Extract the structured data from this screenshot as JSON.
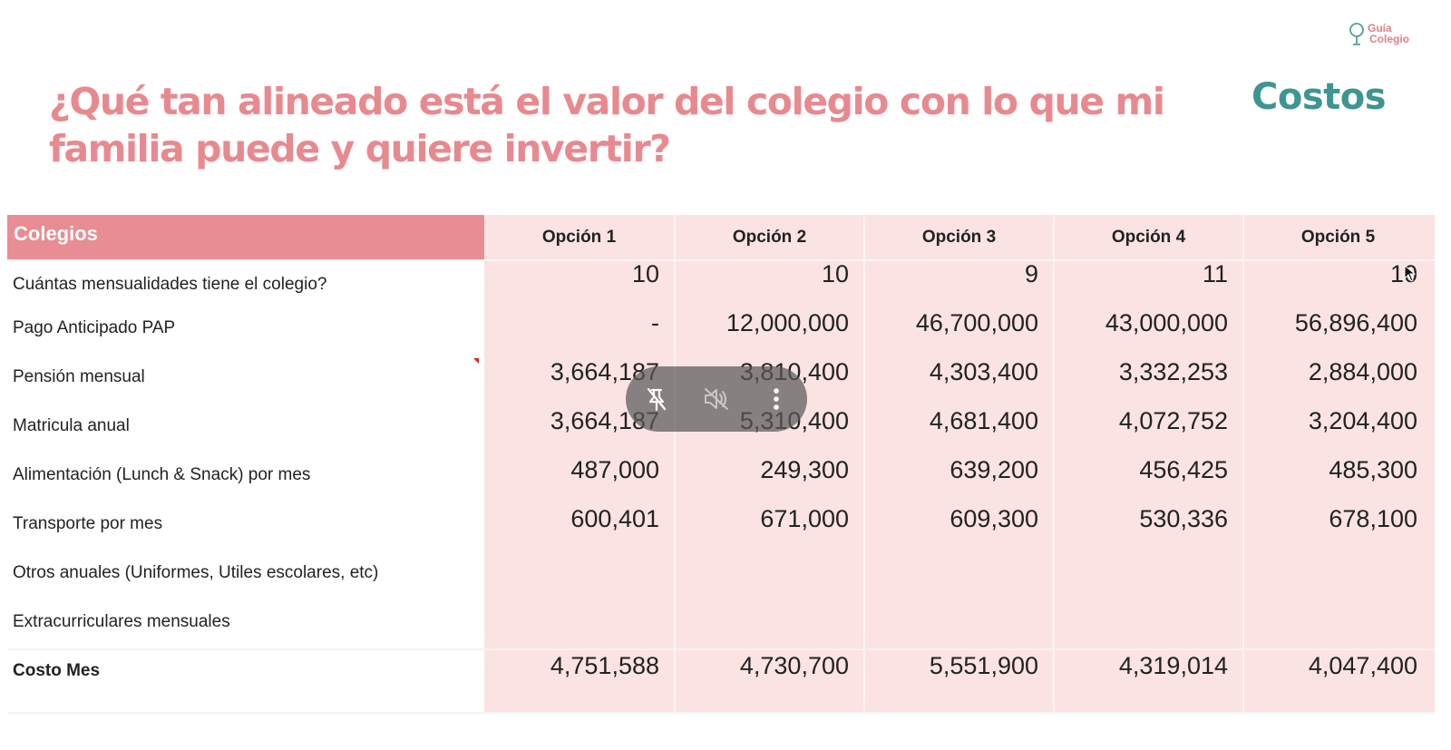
{
  "logo": {
    "line1": "Guía",
    "line2": "Colegio"
  },
  "title": "¿Qué tan alineado está el valor del colegio con lo que mi familia puede y quiere invertir?",
  "section_label": "Costos",
  "table": {
    "header_label": "Colegios",
    "options": [
      "Opción 1",
      "Opción 2",
      "Opción 3",
      "Opción 4",
      "Opción 5"
    ],
    "rows": [
      {
        "label": "Cuántas mensualidades tiene el colegio?",
        "values": [
          "10",
          "10",
          "9",
          "11",
          "10"
        ]
      },
      {
        "label": "Pago Anticipado PAP",
        "values": [
          "-",
          "12,000,000",
          "46,700,000",
          "43,000,000",
          "56,896,400"
        ]
      },
      {
        "label": "Pensión mensual",
        "values": [
          "3,664,187",
          "3,810,400",
          "4,303,400",
          "3,332,253",
          "2,884,000"
        ]
      },
      {
        "label": "Matricula anual",
        "values": [
          "3,664,187",
          "5,310,400",
          "4,681,400",
          "4,072,752",
          "3,204,400"
        ]
      },
      {
        "label": "Alimentación (Lunch & Snack) por mes",
        "values": [
          "487,000",
          "249,300",
          "639,200",
          "456,425",
          "485,300"
        ]
      },
      {
        "label": "Transporte por mes",
        "values": [
          "600,401",
          "671,000",
          "609,300",
          "530,336",
          "678,100"
        ]
      },
      {
        "label": "Otros anuales (Uniformes, Utiles escolares, etc)",
        "values": [
          "",
          "",
          "",
          "",
          ""
        ]
      },
      {
        "label": "Extracurriculares mensuales",
        "values": [
          "",
          "",
          "",
          "",
          ""
        ]
      }
    ],
    "total": {
      "label": "Costo Mes",
      "values": [
        "4,751,588",
        "4,730,700",
        "5,551,900",
        "4,319,014",
        "4,047,400"
      ]
    }
  },
  "overlay_controls": [
    "pin-off-icon",
    "mute-icon",
    "more-vertical-icon"
  ]
}
